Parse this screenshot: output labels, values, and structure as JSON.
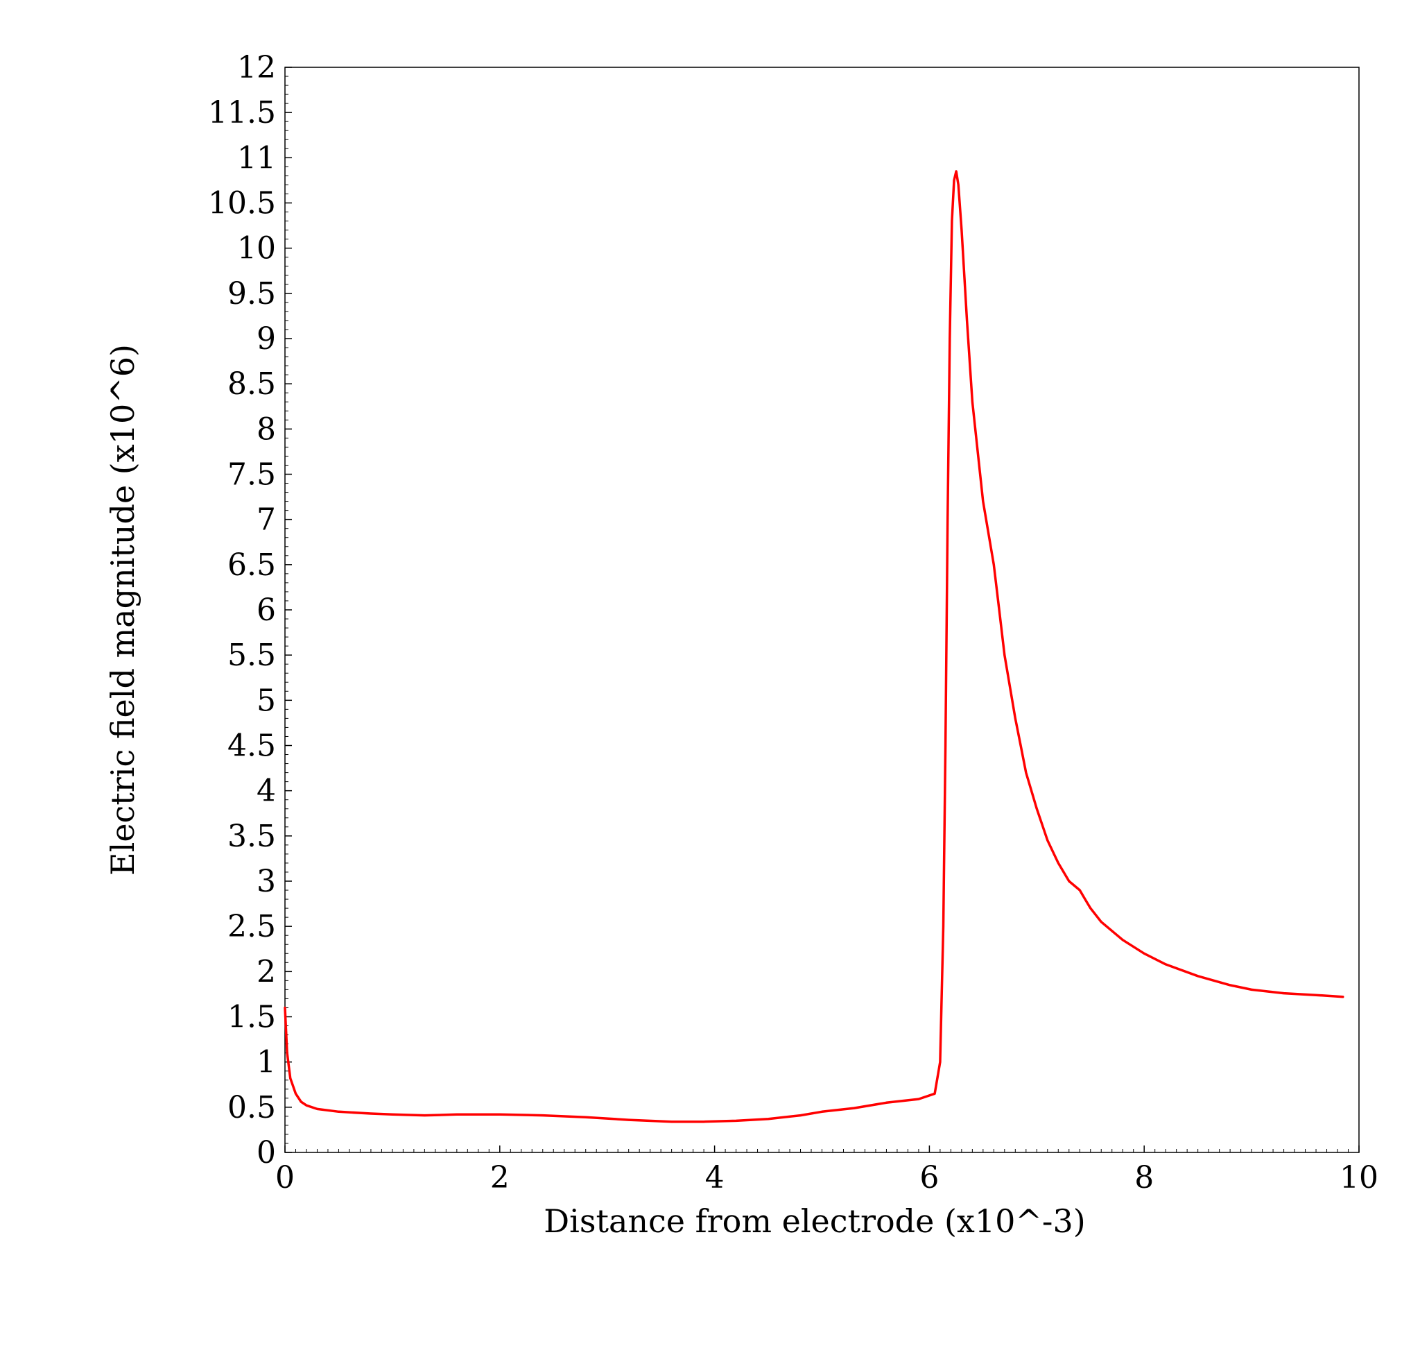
{
  "chart_data": {
    "type": "line",
    "title": "",
    "xlabel": "Distance from electrode (x10^-3)",
    "ylabel": "Electric field magnitude (x10^6)",
    "xlim": [
      0,
      10
    ],
    "ylim": [
      0,
      12
    ],
    "x_ticks": [
      "0",
      "2",
      "4",
      "6",
      "8",
      "10"
    ],
    "y_ticks": [
      "0",
      "0.5",
      "1",
      "1.5",
      "2",
      "2.5",
      "3",
      "3.5",
      "4",
      "4.5",
      "5",
      "5.5",
      "6",
      "6.5",
      "7",
      "7.5",
      "8",
      "8.5",
      "9",
      "9.5",
      "10",
      "10.5",
      "11",
      "11.5",
      "12"
    ],
    "grid": false,
    "line_color": "#ff0000",
    "series": [
      {
        "x": [
          0.0,
          0.02,
          0.05,
          0.1,
          0.15,
          0.2,
          0.3,
          0.5,
          0.8,
          1.0,
          1.3,
          1.6,
          2.0,
          2.4,
          2.8,
          3.2,
          3.6,
          3.9,
          4.2,
          4.5,
          4.8,
          5.0,
          5.3,
          5.6,
          5.9,
          6.05,
          6.1,
          6.13,
          6.15,
          6.17,
          6.19,
          6.21,
          6.23,
          6.25,
          6.27,
          6.3,
          6.35,
          6.4,
          6.5,
          6.6,
          6.65,
          6.7,
          6.8,
          6.85,
          6.9,
          7.0,
          7.1,
          7.2,
          7.3,
          7.4,
          7.45,
          7.5,
          7.6,
          7.8,
          8.0,
          8.2,
          8.5,
          8.8,
          9.0,
          9.3,
          9.6,
          9.85
        ],
        "y": [
          1.6,
          1.1,
          0.82,
          0.65,
          0.56,
          0.52,
          0.48,
          0.45,
          0.43,
          0.42,
          0.41,
          0.42,
          0.42,
          0.41,
          0.39,
          0.36,
          0.34,
          0.34,
          0.35,
          0.37,
          0.41,
          0.45,
          0.49,
          0.55,
          0.59,
          0.65,
          1.0,
          2.5,
          4.5,
          7.0,
          9.0,
          10.3,
          10.75,
          10.85,
          10.7,
          10.2,
          9.2,
          8.3,
          7.2,
          6.5,
          6.0,
          5.5,
          4.8,
          4.5,
          4.2,
          3.8,
          3.45,
          3.2,
          3.0,
          2.9,
          2.8,
          2.7,
          2.55,
          2.35,
          2.2,
          2.08,
          1.95,
          1.85,
          1.8,
          1.76,
          1.74,
          1.72
        ]
      }
    ]
  }
}
